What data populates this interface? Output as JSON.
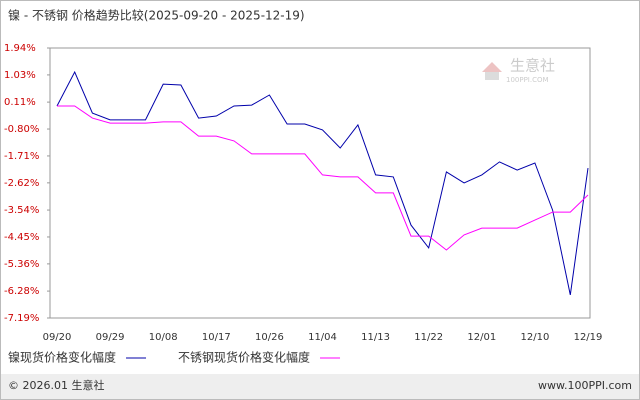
{
  "chart_data": {
    "type": "line",
    "title": "镍 - 不锈钢 价格趋势比较(2025-09-20 - 2025-12-19)",
    "categories": [
      "09/20",
      null,
      null,
      "09/29",
      null,
      null,
      "10/08",
      null,
      null,
      "10/17",
      null,
      null,
      "10/26",
      null,
      null,
      "11/04",
      null,
      null,
      "11/13",
      null,
      null,
      "11/22",
      null,
      null,
      "12/01",
      null,
      null,
      "12/10",
      null,
      null,
      "12/19"
    ],
    "series": [
      {
        "name": "镍现货价格变化幅度",
        "color": "#0000aa",
        "values": [
          -0.02,
          1.13,
          -0.26,
          -0.49,
          -0.49,
          -0.49,
          0.72,
          0.69,
          -0.43,
          -0.36,
          -0.02,
          0.01,
          0.35,
          -0.63,
          -0.63,
          -0.83,
          -1.44,
          -0.66,
          -2.35,
          -2.42,
          -4.05,
          -4.82,
          -2.25,
          -2.62,
          -2.35,
          -1.91,
          -2.19,
          -1.95,
          -3.54,
          -6.41,
          -2.12
        ]
      },
      {
        "name": "不锈钢现货价格变化幅度",
        "color": "#ff00ff",
        "values": [
          -0.02,
          -0.02,
          -0.43,
          -0.6,
          -0.6,
          -0.6,
          -0.56,
          -0.56,
          -1.04,
          -1.04,
          -1.2,
          -1.64,
          -1.64,
          -1.64,
          -1.64,
          -2.35,
          -2.42,
          -2.42,
          -2.96,
          -2.96,
          -4.42,
          -4.42,
          -4.89,
          -4.38,
          -4.15,
          -4.15,
          -4.15,
          -3.88,
          -3.61,
          -3.61,
          -3.03
        ]
      }
    ],
    "ylim": [
      -7.19,
      1.94
    ],
    "yticks": [
      {
        "value": 1.94,
        "label": "1.94%"
      },
      {
        "value": 1.03,
        "label": "1.03%"
      },
      {
        "value": 0.11,
        "label": "0.11%"
      },
      {
        "value": -0.8,
        "label": "-0.80%"
      },
      {
        "value": -1.71,
        "label": "-1.71%"
      },
      {
        "value": -2.62,
        "label": "-2.62%"
      },
      {
        "value": -3.54,
        "label": "-3.54%"
      },
      {
        "value": -4.45,
        "label": "-4.45%"
      },
      {
        "value": -5.36,
        "label": "-5.36%"
      },
      {
        "value": -6.28,
        "label": "-6.28%"
      },
      {
        "value": -7.19,
        "label": "-7.19%"
      }
    ],
    "legend": "bottom",
    "watermark": {
      "name": "生意社",
      "url": "100PPI.COM"
    },
    "footer": {
      "copyright": "© 2026.01 生意社",
      "site": "www.100PPI.com"
    }
  }
}
